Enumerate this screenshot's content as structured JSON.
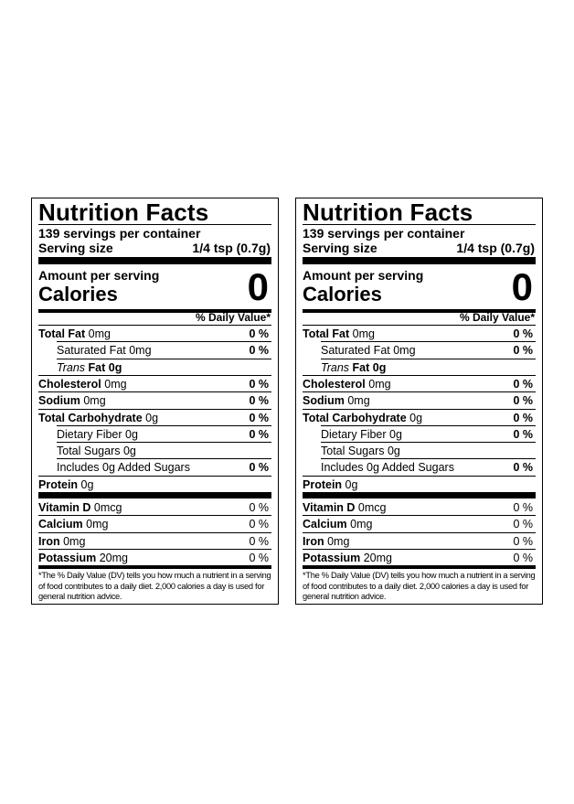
{
  "labels": [
    {
      "title": "Nutrition Facts",
      "servings": "139 servings per container",
      "serving_size_label": "Serving size",
      "serving_size_value": "1/4 tsp (0.7g)",
      "amount_per_serving": "Amount per serving",
      "calories_label": "Calories",
      "calories_value": "0",
      "dv_header": "% Daily Value*",
      "nutrients": [
        {
          "name": "Total Fat",
          "amount": "0mg",
          "dv": "0 %",
          "level": 0
        },
        {
          "name": "Saturated Fat",
          "amount": "0mg",
          "dv": "0 %",
          "level": 1
        },
        {
          "name_italic": "Trans",
          "name": "Fat 0g",
          "level": 1
        },
        {
          "name": "Cholesterol",
          "amount": "0mg",
          "dv": "0 %",
          "level": 0
        },
        {
          "name": "Sodium",
          "amount": "0mg",
          "dv": "0 %",
          "level": 0
        },
        {
          "name": "Total Carbohydrate",
          "amount": "0g",
          "dv": "0 %",
          "level": 0
        },
        {
          "name": "Dietary Fiber",
          "amount": "0g",
          "dv": "0 %",
          "level": 1
        },
        {
          "name": "Total Sugars",
          "amount": "0g",
          "level": 1
        },
        {
          "name": "Includes 0g Added Sugars",
          "dv": "0 %",
          "level": 1
        },
        {
          "name": "Protein",
          "amount": "0g",
          "level": 0
        }
      ],
      "vitamins": [
        {
          "name": "Vitamin D",
          "amount": "0mcg",
          "dv": "0 %"
        },
        {
          "name": "Calcium",
          "amount": "0mg",
          "dv": "0 %"
        },
        {
          "name": "Iron",
          "amount": "0mg",
          "dv": "0 %"
        },
        {
          "name": "Potassium",
          "amount": "20mg",
          "dv": "0 %"
        }
      ],
      "footnote": "*The % Daily Value (DV) tells you how much a nutrient in a serving of food contributes to a daily diet. 2,000 calories a day is used for general nutrition advice."
    },
    {
      "title": "Nutrition Facts",
      "servings": "139 servings per container",
      "serving_size_label": "Serving size",
      "serving_size_value": "1/4 tsp (0.7g)",
      "amount_per_serving": "Amount per serving",
      "calories_label": "Calories",
      "calories_value": "0",
      "dv_header": "% Daily Value*",
      "nutrients": [
        {
          "name": "Total Fat",
          "amount": "0mg",
          "dv": "0 %",
          "level": 0
        },
        {
          "name": "Saturated Fat",
          "amount": "0mg",
          "dv": "0 %",
          "level": 1
        },
        {
          "name_italic": "Trans",
          "name": "Fat 0g",
          "level": 1
        },
        {
          "name": "Cholesterol",
          "amount": "0mg",
          "dv": "0 %",
          "level": 0
        },
        {
          "name": "Sodium",
          "amount": "0mg",
          "dv": "0 %",
          "level": 0
        },
        {
          "name": "Total Carbohydrate",
          "amount": "0g",
          "dv": "0 %",
          "level": 0
        },
        {
          "name": "Dietary Fiber",
          "amount": "0g",
          "dv": "0 %",
          "level": 1
        },
        {
          "name": "Total Sugars",
          "amount": "0g",
          "level": 1
        },
        {
          "name": "Includes 0g Added Sugars",
          "dv": "0 %",
          "level": 1
        },
        {
          "name": "Protein",
          "amount": "0g",
          "level": 0
        }
      ],
      "vitamins": [
        {
          "name": "Vitamin D",
          "amount": "0mcg",
          "dv": "0 %"
        },
        {
          "name": "Calcium",
          "amount": "0mg",
          "dv": "0 %"
        },
        {
          "name": "Iron",
          "amount": "0mg",
          "dv": "0 %"
        },
        {
          "name": "Potassium",
          "amount": "20mg",
          "dv": "0 %"
        }
      ],
      "footnote": "*The % Daily Value (DV) tells you how much a nutrient in a serving of food contributes to a daily diet. 2,000 calories a day is used for general nutrition advice."
    }
  ]
}
